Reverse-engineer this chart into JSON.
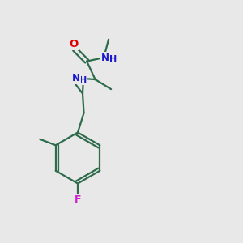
{
  "background_color": "#e8e8e8",
  "bond_color": "#2d6b4a",
  "atom_colors": {
    "O": "#dd0000",
    "N": "#1a1acc",
    "F": "#cc22cc",
    "C": "#2d6b4a"
  },
  "lw": 1.6,
  "fs": 8.5
}
